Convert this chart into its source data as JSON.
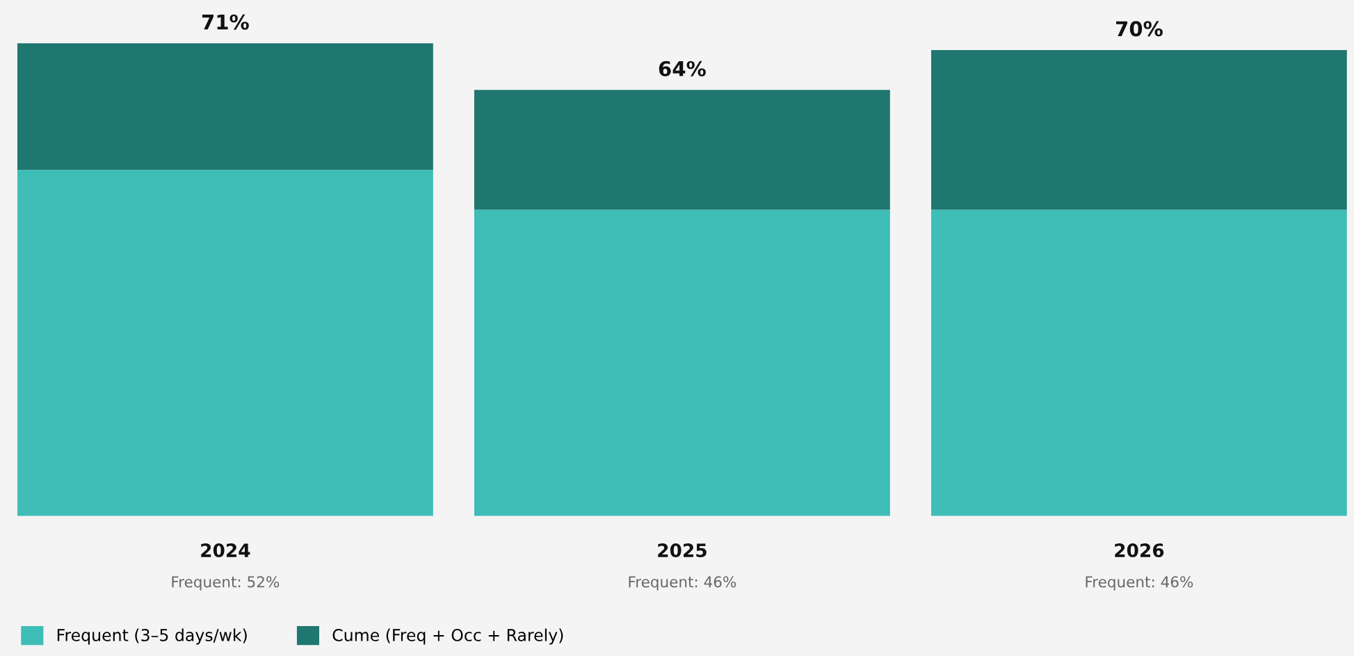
{
  "chart_data": {
    "type": "bar",
    "stacked": true,
    "categories": [
      "2024",
      "2025",
      "2026"
    ],
    "series": [
      {
        "name": "Frequent (3–5 days/wk)",
        "color": "#3fbdb7",
        "values": [
          52,
          46,
          46
        ],
        "value_labels": [
          "Frequent: 52%",
          "Frequent: 46%",
          "Frequent: 46%"
        ]
      },
      {
        "name": "Cume (Freq + Occ + Rarely)",
        "color": "#1f7770",
        "values": [
          19,
          18,
          24
        ]
      }
    ],
    "totals": [
      "71%",
      "64%",
      "70%"
    ],
    "legend": "bottom left"
  }
}
